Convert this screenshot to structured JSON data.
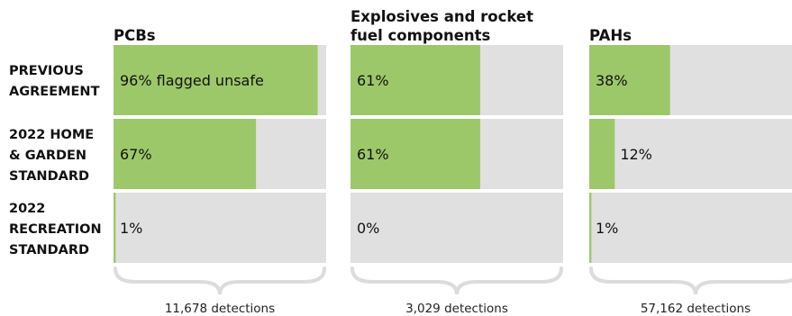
{
  "chart_data": {
    "type": "bar",
    "orientation": "horizontal",
    "xlim": [
      0,
      100
    ],
    "unit": "%",
    "colors": {
      "fill": "#9dc86a",
      "track": "#e0e0e0",
      "brace": "#dcdcdc"
    },
    "rows": [
      {
        "label_lines": [
          "PREVIOUS",
          "AGREEMENT"
        ]
      },
      {
        "label_lines": [
          "2022 HOME",
          "& GARDEN",
          "STANDARD"
        ]
      },
      {
        "label_lines": [
          "2022",
          "RECREATION",
          "STANDARD"
        ]
      }
    ],
    "panels": [
      {
        "title_lines": [
          "PCBs"
        ],
        "values": [
          96,
          67,
          1
        ],
        "labels": [
          "96% flagged unsafe",
          "67%",
          "1%"
        ],
        "detections": "11,678 detections"
      },
      {
        "title_lines": [
          "Explosives and rocket",
          "fuel components"
        ],
        "values": [
          61,
          61,
          0
        ],
        "labels": [
          "61%",
          "61%",
          "0%"
        ],
        "detections": "3,029 detections"
      },
      {
        "title_lines": [
          "PAHs"
        ],
        "values": [
          38,
          12,
          1
        ],
        "labels": [
          "38%",
          "12%",
          "1%"
        ],
        "detections": "57,162 detections"
      }
    ]
  }
}
